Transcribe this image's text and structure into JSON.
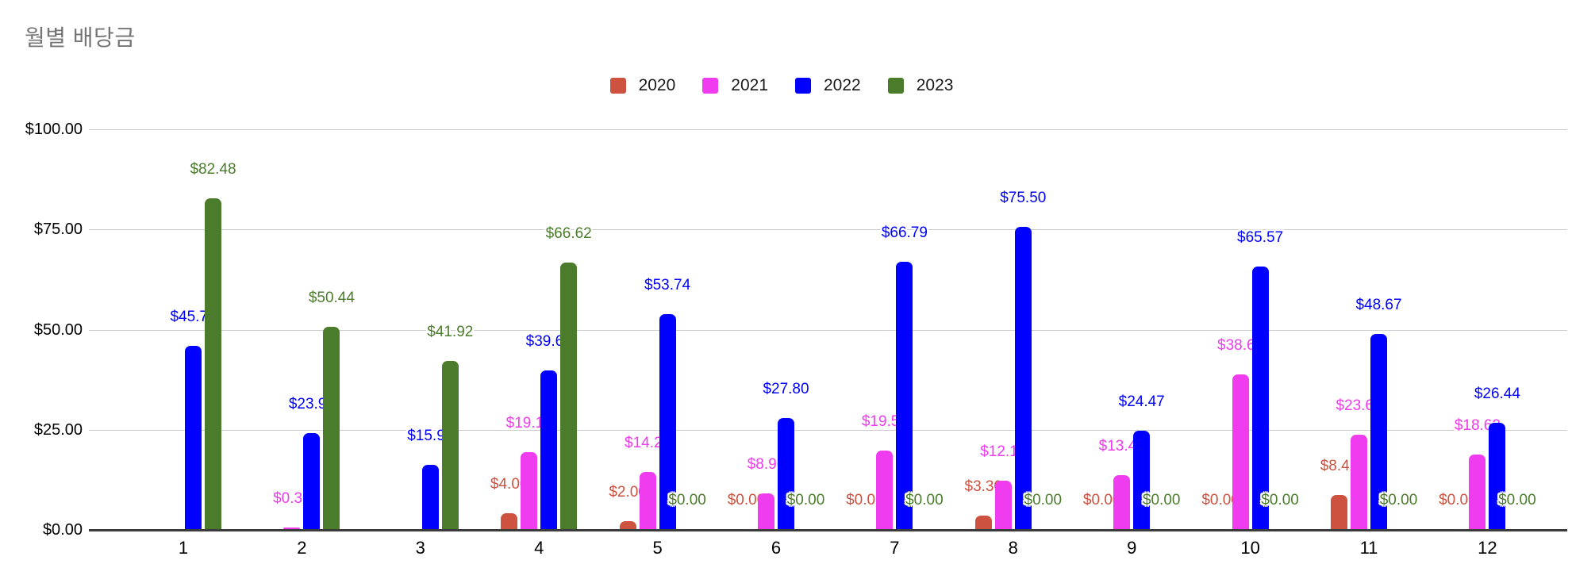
{
  "page": {
    "background": "#ffffff"
  },
  "chart_data": {
    "type": "bar",
    "title": "월별 배당금",
    "title_color": "#757575",
    "xlabel": "",
    "ylabel": "",
    "categories": [
      "1",
      "2",
      "3",
      "4",
      "5",
      "6",
      "7",
      "8",
      "9",
      "10",
      "11",
      "12"
    ],
    "series": [
      {
        "name": "2020",
        "color": "#cd5240",
        "values": [
          null,
          null,
          null,
          4.0,
          2.0,
          0.0,
          0.0,
          3.3,
          0.0,
          0.0,
          8.42,
          0.0
        ]
      },
      {
        "name": "2021",
        "color": "#ee3cee",
        "values": [
          null,
          0.3,
          null,
          19.18,
          14.25,
          8.96,
          19.55,
          12.12,
          13.49,
          38.62,
          23.61,
          18.62
        ]
      },
      {
        "name": "2022",
        "color": "#0000fe",
        "values": [
          45.77,
          23.9,
          15.99,
          39.63,
          53.74,
          27.8,
          66.79,
          75.5,
          24.47,
          65.57,
          48.67,
          26.44
        ]
      },
      {
        "name": "2023",
        "color": "#4a7c2b",
        "values": [
          82.48,
          50.44,
          41.92,
          66.62,
          0.0,
          0.0,
          0.0,
          0.0,
          0.0,
          0.0,
          0.0,
          0.0
        ]
      }
    ],
    "y_ticks": [
      {
        "label": "$100.00",
        "value": 100
      },
      {
        "label": "$75.00",
        "value": 75
      },
      {
        "label": "$50.00",
        "value": 50
      },
      {
        "label": "$25.00",
        "value": 25
      },
      {
        "label": "$0.00",
        "value": 0
      }
    ],
    "ylim": [
      0,
      100
    ],
    "value_prefix": "$",
    "grid": true,
    "legend_position": "top"
  }
}
